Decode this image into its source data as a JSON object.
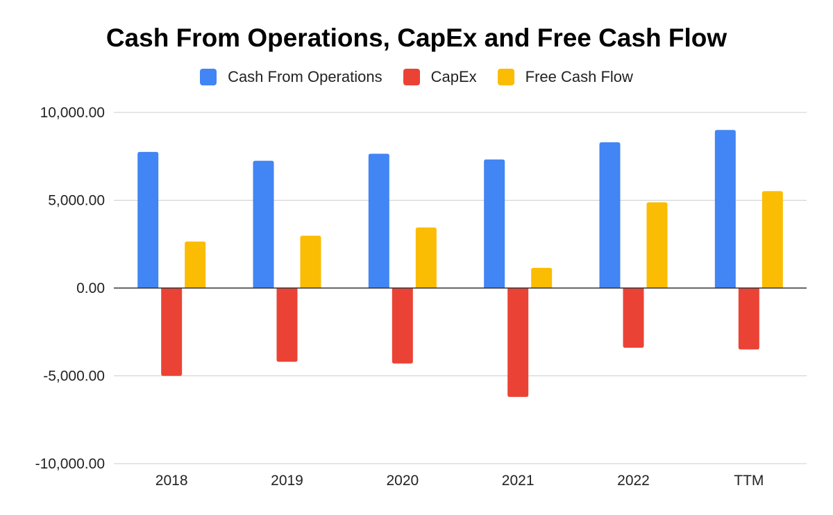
{
  "chart_data": {
    "type": "bar",
    "title": "Cash From Operations, CapEx and Free Cash Flow",
    "xlabel": "",
    "ylabel": "",
    "categories": [
      "2018",
      "2019",
      "2020",
      "2021",
      "2022",
      "TTM"
    ],
    "series": [
      {
        "name": "Cash From Operations",
        "color": "#4285F4",
        "values": [
          7750,
          7250,
          7650,
          7320,
          8300,
          9000
        ]
      },
      {
        "name": "CapEx",
        "color": "#EA4335",
        "values": [
          -5000,
          -4200,
          -4300,
          -6200,
          -3400,
          -3500
        ]
      },
      {
        "name": "Free Cash Flow",
        "color": "#FBBC04",
        "values": [
          2650,
          2980,
          3450,
          1150,
          4880,
          5520
        ]
      }
    ],
    "ylim": [
      -10000,
      10000
    ],
    "yticks": [
      10000,
      5000,
      0,
      -5000,
      -10000
    ],
    "ytick_labels": [
      "10,000.00",
      "5,000.00",
      "0.00",
      "-5,000.00",
      "-10,000.00"
    ],
    "grid": true,
    "legend_position": "top-center"
  }
}
